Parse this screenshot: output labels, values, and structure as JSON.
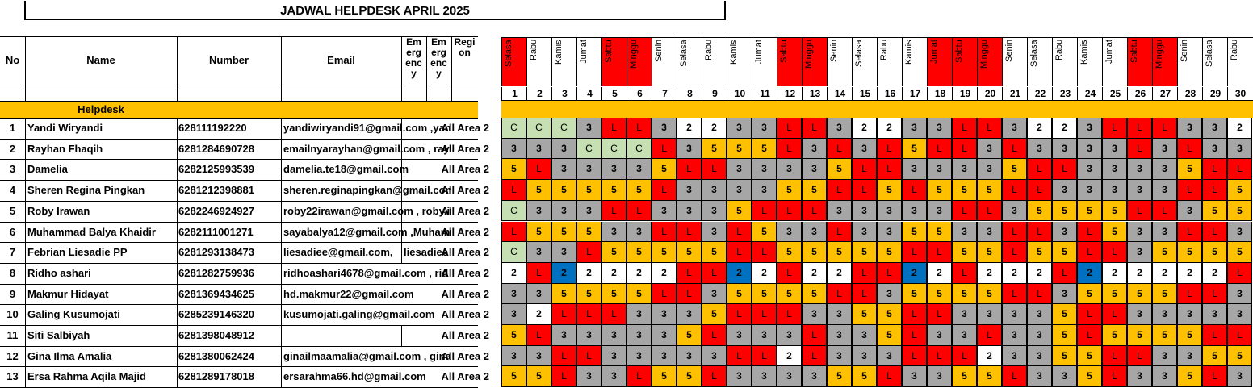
{
  "title": "JADWAL HELPDESK APRIL 2025",
  "headers": {
    "no": "No",
    "name": "Name",
    "number": "Number",
    "email": "Email",
    "emergency1": "Emergency",
    "emergency2": "Emergency",
    "region": "Region"
  },
  "section_label": "Helpdesk",
  "days": [
    {
      "d": "1",
      "n": "Selasa",
      "red": true
    },
    {
      "d": "2",
      "n": "Rabu",
      "red": false
    },
    {
      "d": "3",
      "n": "Kamis",
      "red": false
    },
    {
      "d": "4",
      "n": "Jumat",
      "red": false
    },
    {
      "d": "5",
      "n": "Sabtu",
      "red": true
    },
    {
      "d": "6",
      "n": "Minggu",
      "red": true
    },
    {
      "d": "7",
      "n": "Senin",
      "red": false
    },
    {
      "d": "8",
      "n": "Selasa",
      "red": false
    },
    {
      "d": "9",
      "n": "Rabu",
      "red": false
    },
    {
      "d": "10",
      "n": "Kamis",
      "red": false
    },
    {
      "d": "11",
      "n": "Jumat",
      "red": false
    },
    {
      "d": "12",
      "n": "Sabtu",
      "red": true
    },
    {
      "d": "13",
      "n": "Minggu",
      "red": true
    },
    {
      "d": "14",
      "n": "Senin",
      "red": false
    },
    {
      "d": "15",
      "n": "Selasa",
      "red": false
    },
    {
      "d": "16",
      "n": "Rabu",
      "red": false
    },
    {
      "d": "17",
      "n": "Kamis",
      "red": false
    },
    {
      "d": "18",
      "n": "Jumat",
      "red": true
    },
    {
      "d": "19",
      "n": "Sabtu",
      "red": true
    },
    {
      "d": "20",
      "n": "Minggu",
      "red": true
    },
    {
      "d": "21",
      "n": "Senin",
      "red": false
    },
    {
      "d": "22",
      "n": "Selasa",
      "red": false
    },
    {
      "d": "23",
      "n": "Rabu",
      "red": false
    },
    {
      "d": "24",
      "n": "Kamis",
      "red": false
    },
    {
      "d": "25",
      "n": "Jumat",
      "red": false
    },
    {
      "d": "26",
      "n": "Sabtu",
      "red": true
    },
    {
      "d": "27",
      "n": "Minggu",
      "red": true
    },
    {
      "d": "28",
      "n": "Senin",
      "red": false
    },
    {
      "d": "29",
      "n": "Selasa",
      "red": false
    },
    {
      "d": "30",
      "n": "Rabu",
      "red": false
    }
  ],
  "rows": [
    {
      "no": "1",
      "name": "Yandi Wiryandi",
      "number": "628111192220",
      "email": "yandiwiryandi91@gmail.com ,yandi",
      "emergency": "",
      "region": "All Area 2",
      "s": [
        "C",
        "C",
        "C",
        "3",
        "L",
        "L",
        "3",
        "2",
        "2",
        "3",
        "3",
        "L",
        "L",
        "3",
        "2",
        "2",
        "3",
        "3",
        "L",
        "L",
        "3",
        "2",
        "2",
        "3",
        "L",
        "L",
        "L",
        "3",
        "3",
        "2"
      ]
    },
    {
      "no": "2",
      "name": "Rayhan Fhaqih",
      "number": "6281284690728",
      "email": "emailnyarayhan@gmail.com , rayha",
      "emergency": "",
      "region": "All Area 2",
      "s": [
        "3",
        "3",
        "3",
        "C",
        "C",
        "C",
        "L",
        "3",
        "5",
        "5",
        "5",
        "L",
        "3",
        "L",
        "3",
        "L",
        "5",
        "L",
        "L",
        "3",
        "L",
        "3",
        "3",
        "3",
        "3",
        "L",
        "3",
        "L",
        "3",
        "3"
      ]
    },
    {
      "no": "3",
      "name": "Damelia",
      "number": "6282125993539",
      "email": "damelia.te18@gmail.com",
      "emergency": "",
      "region": "All Area 2",
      "s": [
        "5",
        "L",
        "3",
        "3",
        "3",
        "3",
        "5",
        "L",
        "L",
        "3",
        "3",
        "3",
        "3",
        "5",
        "L",
        "L",
        "3",
        "3",
        "3",
        "3",
        "5",
        "L",
        "L",
        "3",
        "3",
        "3",
        "3",
        "5",
        "L",
        "L"
      ]
    },
    {
      "no": "4",
      "name": "Sheren Regina Pingkan",
      "number": "6281212398881",
      "email": "sheren.reginapingkan@gmail.com",
      "emergency": "",
      "region": "All Area 2",
      "s": [
        "L",
        "5",
        "5",
        "5",
        "5",
        "5",
        "L",
        "3",
        "3",
        "3",
        "3",
        "5",
        "5",
        "L",
        "L",
        "5",
        "L",
        "5",
        "5",
        "5",
        "L",
        "L",
        "3",
        "3",
        "3",
        "3",
        "3",
        "L",
        "L",
        "5"
      ]
    },
    {
      "no": "5",
      "name": "Roby Irawan",
      "number": "6282246924927",
      "email": "roby22irawan@gmail.com , roby.ira",
      "emergency": "",
      "region": "All Area 2",
      "s": [
        "C",
        "3",
        "3",
        "3",
        "L",
        "L",
        "3",
        "3",
        "3",
        "5",
        "L",
        "L",
        "L",
        "3",
        "3",
        "3",
        "3",
        "3",
        "L",
        "L",
        "3",
        "5",
        "5",
        "5",
        "5",
        "L",
        "L",
        "3",
        "5",
        "5"
      ]
    },
    {
      "no": "6",
      "name": "Muhammad Balya Khaidir",
      "number": "6282111001271",
      "email": "sayabalya12@gmail.com ,Muhamm",
      "emergency": "",
      "region": "All Area 2",
      "s": [
        "L",
        "5",
        "5",
        "5",
        "3",
        "3",
        "L",
        "L",
        "3",
        "L",
        "5",
        "3",
        "3",
        "L",
        "3",
        "3",
        "5",
        "5",
        "3",
        "3",
        "L",
        "L",
        "3",
        "L",
        "5",
        "3",
        "3",
        "L",
        "L",
        "3"
      ]
    },
    {
      "no": "7",
      "name": "Febrian Liesadie PP",
      "number": "6281293138473",
      "email": "liesadiee@gmail.com,",
      "emergency": "liesadiee",
      "region": "All Area 2",
      "s": [
        "C",
        "3",
        "3",
        "L",
        "5",
        "5",
        "5",
        "5",
        "5",
        "L",
        "L",
        "5",
        "5",
        "5",
        "5",
        "5",
        "L",
        "L",
        "5",
        "5",
        "L",
        "5",
        "5",
        "L",
        "L",
        "3",
        "5",
        "5",
        "5",
        "5"
      ]
    },
    {
      "no": "8",
      "name": "Ridho ashari",
      "number": "6281282759936",
      "email": "ridhoashari4678@gmail.com , rid",
      "emergency": "",
      "region": "All Area 2",
      "s": [
        "2",
        "L",
        "b2",
        "2",
        "2",
        "2",
        "2",
        "L",
        "L",
        "b2",
        "2",
        "L",
        "2",
        "2",
        "L",
        "L",
        "b2",
        "2",
        "L",
        "2",
        "2",
        "2",
        "L",
        "b2",
        "2",
        "2",
        "2",
        "2",
        "2",
        "L"
      ]
    },
    {
      "no": "9",
      "name": "Makmur Hidayat",
      "number": "6281369434625",
      "email": "hd.makmur22@gmail.com",
      "emergency": "",
      "region": "All Area 2",
      "s": [
        "3",
        "3",
        "5",
        "5",
        "5",
        "5",
        "L",
        "L",
        "3",
        "5",
        "5",
        "5",
        "5",
        "L",
        "L",
        "3",
        "5",
        "5",
        "5",
        "5",
        "L",
        "L",
        "3",
        "5",
        "5",
        "5",
        "5",
        "L",
        "L",
        "3"
      ]
    },
    {
      "no": "10",
      "name": "Galing Kusumojati",
      "number": "6285239146320",
      "email": "kusumojati.galing@gmail.com",
      "emergency": "",
      "region": "All Area 2",
      "s": [
        "3",
        "2",
        "L",
        "L",
        "L",
        "3",
        "3",
        "3",
        "5",
        "L",
        "L",
        "L",
        "3",
        "3",
        "5",
        "5",
        "L",
        "L",
        "3",
        "3",
        "3",
        "3",
        "5",
        "L",
        "L",
        "3",
        "3",
        "3",
        "3",
        "3"
      ]
    },
    {
      "no": "11",
      "name": "Siti Salbiyah",
      "number": "6281398048912",
      "email": "",
      "emergency": "",
      "region": "All Area 2",
      "s": [
        "5",
        "L",
        "3",
        "3",
        "3",
        "3",
        "3",
        "5",
        "L",
        "3",
        "3",
        "3",
        "L",
        "3",
        "3",
        "5",
        "L",
        "3",
        "3",
        "L",
        "3",
        "3",
        "5",
        "L",
        "5",
        "5",
        "5",
        "5",
        "L",
        "L"
      ]
    },
    {
      "no": "12",
      "name": "Gina Ilma Amalia",
      "number": "6281380062424",
      "email": "ginailmaamalia@gmail.com , gina",
      "emergency": "",
      "region": "All Area 2",
      "s": [
        "3",
        "3",
        "L",
        "L",
        "3",
        "3",
        "3",
        "3",
        "3",
        "L",
        "L",
        "2",
        "L",
        "3",
        "3",
        "3",
        "L",
        "L",
        "L",
        "2",
        "3",
        "3",
        "5",
        "5",
        "L",
        "L",
        "3",
        "3",
        "5",
        "5"
      ]
    },
    {
      "no": "13",
      "name": "Ersa Rahma Aqila Majid",
      "number": "6281289178018",
      "email": "ersarahma66.hd@gmail.com",
      "emergency": "",
      "region": "All Area 2",
      "s": [
        "5",
        "5",
        "L",
        "3",
        "3",
        "L",
        "5",
        "5",
        "L",
        "3",
        "3",
        "3",
        "3",
        "5",
        "5",
        "L",
        "3",
        "3",
        "5",
        "5",
        "L",
        "3",
        "3",
        "5",
        "L",
        "3",
        "3",
        "5",
        "L",
        "3"
      ]
    }
  ]
}
